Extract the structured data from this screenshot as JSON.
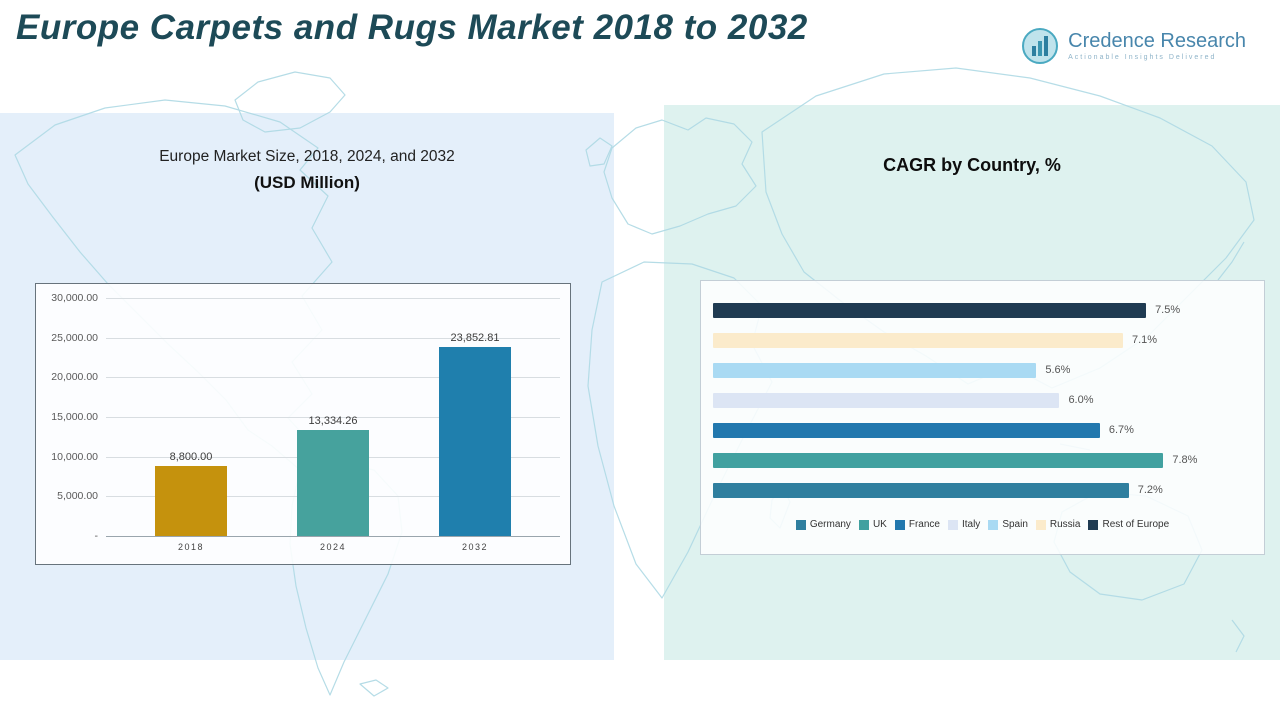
{
  "page": {
    "title": "Europe Carpets and Rugs Market 2018 to 2032"
  },
  "logo": {
    "name": "Credence Research",
    "tagline": "Actionable Insights Delivered"
  },
  "panels": {
    "market_size": {
      "title_line1": "Europe Market Size, 2018, 2024, and 2032",
      "title_line2": "(USD Million)"
    },
    "cagr": {
      "title": "CAGR by Country, %"
    }
  },
  "chart_data": [
    {
      "type": "bar",
      "title": "Europe Market Size, 2018, 2024, and 2032 (USD Million)",
      "categories": [
        "2018",
        "2024",
        "2032"
      ],
      "values": [
        8800.0,
        13334.26,
        23852.81
      ],
      "value_labels": [
        "8,800.00",
        "13,334.26",
        "23,852.81"
      ],
      "colors": [
        "#C5920D",
        "#46A29D",
        "#1F7FAD"
      ],
      "ylim": [
        0,
        30000
      ],
      "yticks": [
        "30,000.00",
        "25,000.00",
        "20,000.00",
        "15,000.00",
        "10,000.00",
        "5,000.00",
        "-"
      ],
      "grid": true,
      "legend_position": "none"
    },
    {
      "type": "bar-horizontal",
      "title": "CAGR by Country, %",
      "xlim": [
        0,
        9.3
      ],
      "grid": false,
      "rows_top_to_bottom": [
        {
          "country": "Rest of Europe",
          "value": 7.5,
          "label": "7.5%",
          "color": "#1F3B52"
        },
        {
          "country": "Russia",
          "value": 7.1,
          "label": "7.1%",
          "color": "#FBEBCB"
        },
        {
          "country": "Spain",
          "value": 5.6,
          "label": "5.6%",
          "color": "#A9DAF3"
        },
        {
          "country": "Italy",
          "value": 6.0,
          "label": "6.0%",
          "color": "#DCE5F4"
        },
        {
          "country": "France",
          "value": 6.7,
          "label": "6.7%",
          "color": "#2278AE"
        },
        {
          "country": "UK",
          "value": 7.8,
          "label": "7.8%",
          "color": "#41A1A0"
        },
        {
          "country": "Germany",
          "value": 7.2,
          "label": "7.2%",
          "color": "#2F7F9F"
        }
      ],
      "legend_position": "bottom",
      "legend": [
        {
          "label": "Germany",
          "color": "#2F7F9F"
        },
        {
          "label": "UK",
          "color": "#41A1A0"
        },
        {
          "label": "France",
          "color": "#2278AE"
        },
        {
          "label": "Italy",
          "color": "#DCE5F4"
        },
        {
          "label": "Spain",
          "color": "#A9DAF3"
        },
        {
          "label": "Russia",
          "color": "#FBEBCB"
        },
        {
          "label": "Rest of Europe",
          "color": "#1F3B52"
        }
      ]
    }
  ]
}
